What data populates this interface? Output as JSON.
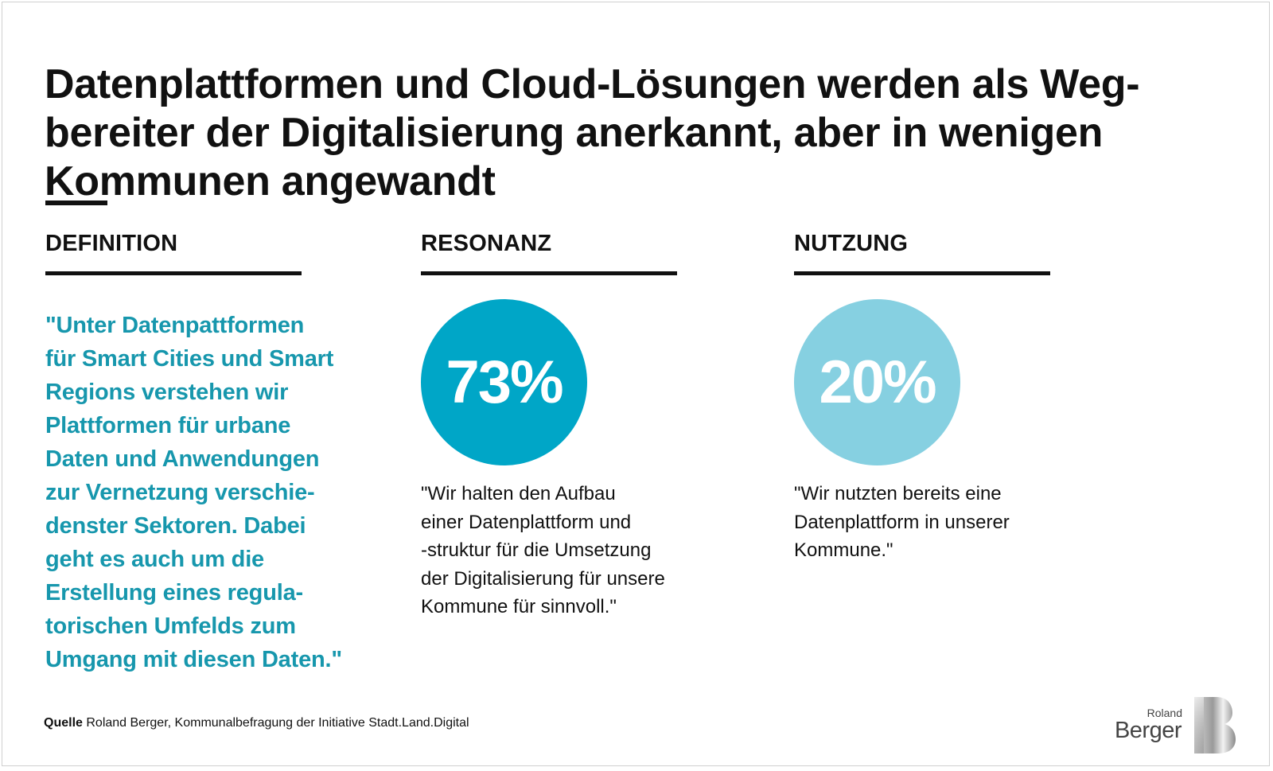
{
  "headline": {
    "lines": [
      "Datenplattformen und Cloud-Lösungen werden als Weg-",
      "bereiter der Digitalisierung anerkannt, aber in wenigen",
      "Kommunen angewandt"
    ]
  },
  "columns": {
    "definition": {
      "heading": "DEFINITION",
      "quote_lines": [
        "\"Unter Datenpattformen",
        "für Smart Cities und Smart",
        "Regions verstehen wir",
        "Plattformen für urbane",
        "Daten und Anwendungen",
        "zur Vernetzung verschie-",
        "denster Sektoren. Dabei",
        "geht es auch um die",
        "Erstellung eines regula-",
        "torischen Umfelds zum",
        "Umgang mit diesen Daten.\""
      ]
    },
    "resonanz": {
      "heading": "RESONANZ",
      "percent": "73%",
      "circle_color": "#00a6c7",
      "quote_lines": [
        "\"Wir halten den Aufbau",
        "einer Datenplattform und",
        "-struktur für die Umsetzung",
        "der Digitalisierung für unsere",
        "Kommune für sinnvoll.\""
      ]
    },
    "nutzung": {
      "heading": "NUTZUNG",
      "percent": "20%",
      "circle_color": "#86d0e1",
      "quote_lines": [
        "\"Wir nutzten bereits eine",
        "Datenplattform in unserer",
        "Kommune.\""
      ]
    }
  },
  "source": {
    "label": "Quelle",
    "text": "Roland Berger, Kommunalbefragung der Initiative Stadt.Land.Digital"
  },
  "logo": {
    "line1": "Roland",
    "line2": "Berger",
    "icon": "roland-berger-b-logo-icon"
  }
}
